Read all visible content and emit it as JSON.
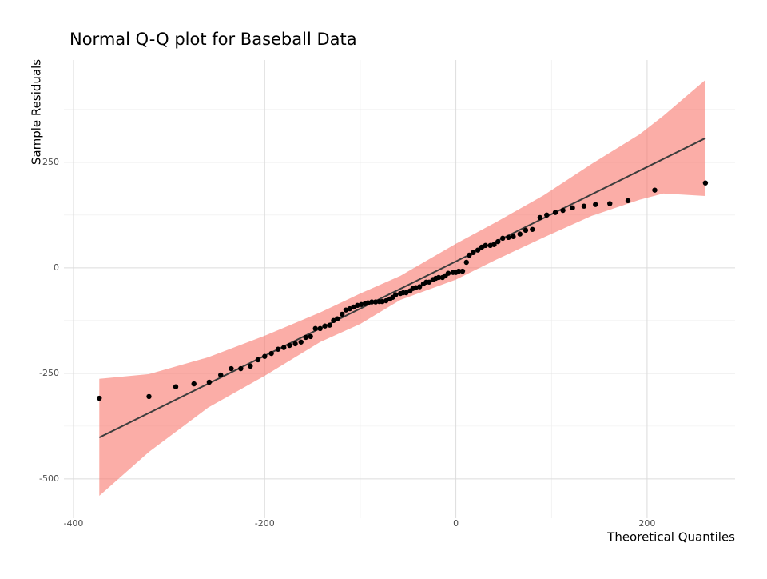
{
  "chart_data": {
    "type": "scatter",
    "title": "Normal Q-Q plot for Baseball Data",
    "x_label": "Theoretical Quantiles",
    "y_label": "Sample Residuals",
    "xlim": [
      -410,
      292
    ],
    "ylim": [
      -593,
      492
    ],
    "xticks": [
      -400,
      -200,
      0,
      200
    ],
    "yticks": [
      -500,
      -250,
      0,
      250
    ],
    "x_minor_grid": [
      -300,
      -100,
      100
    ],
    "y_minor_grid": [
      -375,
      -125,
      125,
      375
    ],
    "grid": true,
    "point_color": "#000000",
    "points": {
      "x": [
        -373,
        -321,
        -293,
        -274,
        -258,
        -246,
        -235,
        -225,
        -215,
        -207,
        -200,
        -193,
        -186,
        -180,
        -174,
        -168,
        -162,
        -157,
        -152,
        -147,
        -142,
        -137,
        -132,
        -128,
        -124,
        -119,
        -115,
        -111,
        -107,
        -103,
        -99,
        -95,
        -92,
        -88,
        -84,
        -80,
        -77,
        -73,
        -69,
        -66,
        -63,
        -58,
        -55,
        -52,
        -48,
        -45,
        -42,
        -38,
        -34,
        -31,
        -28,
        -24,
        -21,
        -18,
        -14,
        -11,
        -8,
        -3,
        0,
        3,
        7,
        11,
        14,
        18,
        23,
        27,
        31,
        36,
        40,
        44,
        49,
        55,
        60,
        67,
        73,
        80,
        88,
        95,
        104,
        112,
        122,
        134,
        146,
        161,
        180,
        208,
        261
      ],
      "values": [
        -309,
        -305,
        -282,
        -275,
        -271,
        -254,
        -239,
        -239,
        -233,
        -218,
        -210,
        -203,
        -193,
        -189,
        -184,
        -180,
        -176,
        -165,
        -163,
        -144,
        -144,
        -138,
        -136,
        -125,
        -121,
        -110,
        -100,
        -97,
        -93,
        -89,
        -87,
        -85,
        -83,
        -81,
        -81,
        -80,
        -80,
        -78,
        -74,
        -70,
        -64,
        -61,
        -59,
        -59,
        -55,
        -49,
        -47,
        -45,
        -38,
        -34,
        -34,
        -28,
        -25,
        -23,
        -23,
        -19,
        -13,
        -11,
        -11,
        -8,
        -8,
        13,
        30,
        36,
        42,
        49,
        53,
        53,
        55,
        62,
        70,
        72,
        74,
        80,
        89,
        91,
        119,
        125,
        131,
        136,
        142,
        146,
        150,
        152,
        159,
        184,
        201
      ]
    },
    "reference_line": {
      "color": "#3d3d3d",
      "x": [
        -373,
        261
      ],
      "values": [
        -402,
        307
      ]
    },
    "band": {
      "color": "#f8766d",
      "x": [
        -373,
        -321,
        -259,
        -200,
        -142,
        -100,
        -58,
        0,
        42,
        92,
        142,
        192,
        217,
        261
      ],
      "upper": [
        -263,
        -252,
        -212,
        -161,
        -106,
        -61,
        -19,
        57,
        108,
        172,
        246,
        316,
        360,
        445
      ],
      "lower": [
        -540,
        -436,
        -331,
        -256,
        -176,
        -133,
        -76,
        -28,
        19,
        72,
        123,
        161,
        176,
        170
      ]
    }
  }
}
